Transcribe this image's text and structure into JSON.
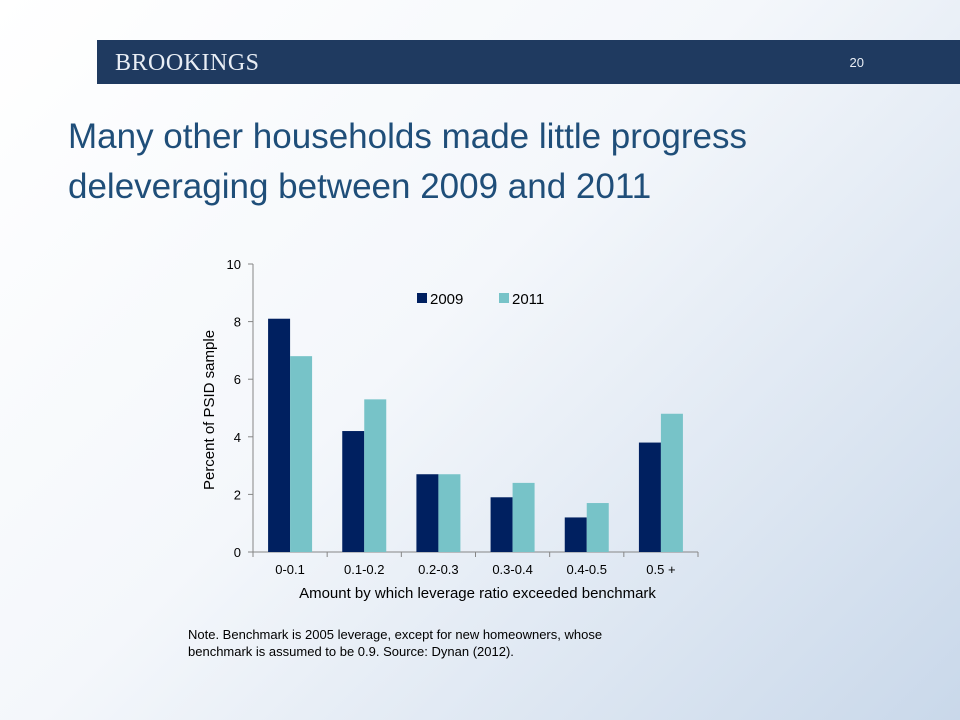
{
  "header": {
    "logo_text": "BROOKINGS",
    "slide_number": "20"
  },
  "title": {
    "line1": "Many other households made little progress",
    "line2": "deleveraging between 2009 and 2011"
  },
  "note": {
    "line1": "Note. Benchmark is 2005 leverage, except for new homeowners, whose",
    "line2": "benchmark is assumed to be 0.9.  Source: Dynan (2012)."
  },
  "colors": {
    "banner": "#1f3a60",
    "title": "#1f4e79",
    "series_2009": "#002060",
    "series_2011": "#77c3c8"
  },
  "chart_data": {
    "type": "bar",
    "categories": [
      "0-0.1",
      "0.1-0.2",
      "0.2-0.3",
      "0.3-0.4",
      "0.4-0.5",
      "0.5 +"
    ],
    "series": [
      {
        "name": "2009",
        "values": [
          8.1,
          4.2,
          2.7,
          1.9,
          1.2,
          3.8
        ]
      },
      {
        "name": "2011",
        "values": [
          6.8,
          5.3,
          2.7,
          2.4,
          1.7,
          4.8
        ]
      }
    ],
    "title": "",
    "xlabel": "Amount by which leverage ratio exceeded benchmark",
    "ylabel": "Percent of PSID sample",
    "ylim": [
      0,
      10
    ],
    "yticks": [
      0,
      2,
      4,
      6,
      8,
      10
    ],
    "grid": false,
    "legend": "top-center"
  }
}
